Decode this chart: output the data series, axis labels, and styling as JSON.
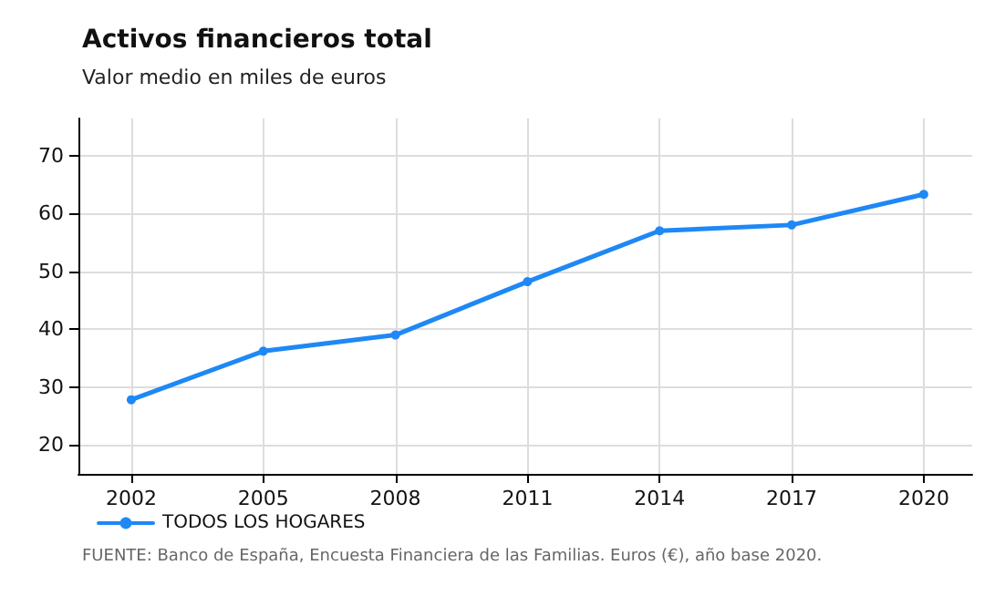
{
  "chart_data": {
    "type": "line",
    "title": "Activos financieros total",
    "subtitle": "Valor medio en miles de euros",
    "x": [
      2002,
      2005,
      2008,
      2011,
      2014,
      2017,
      2020
    ],
    "series": [
      {
        "name": "TODOS LOS HOGARES",
        "color": "#1e88f5",
        "values": [
          27.8,
          36.2,
          39,
          48.2,
          57,
          58,
          63.3
        ]
      }
    ],
    "xlim": [
      2000.8,
      2021.1
    ],
    "xticks": [
      2002,
      2005,
      2008,
      2011,
      2014,
      2017,
      2020
    ],
    "ylim": [
      15,
      76.4
    ],
    "yticks": [
      20,
      30,
      40,
      50,
      60,
      70
    ],
    "grid": true,
    "legend": "bottom left",
    "marker": "circle",
    "line_style": "solid",
    "annotations": [
      "FUENTE: Banco de España, Encuesta Financiera de las Familias. Euros (€), año base 2020."
    ]
  }
}
